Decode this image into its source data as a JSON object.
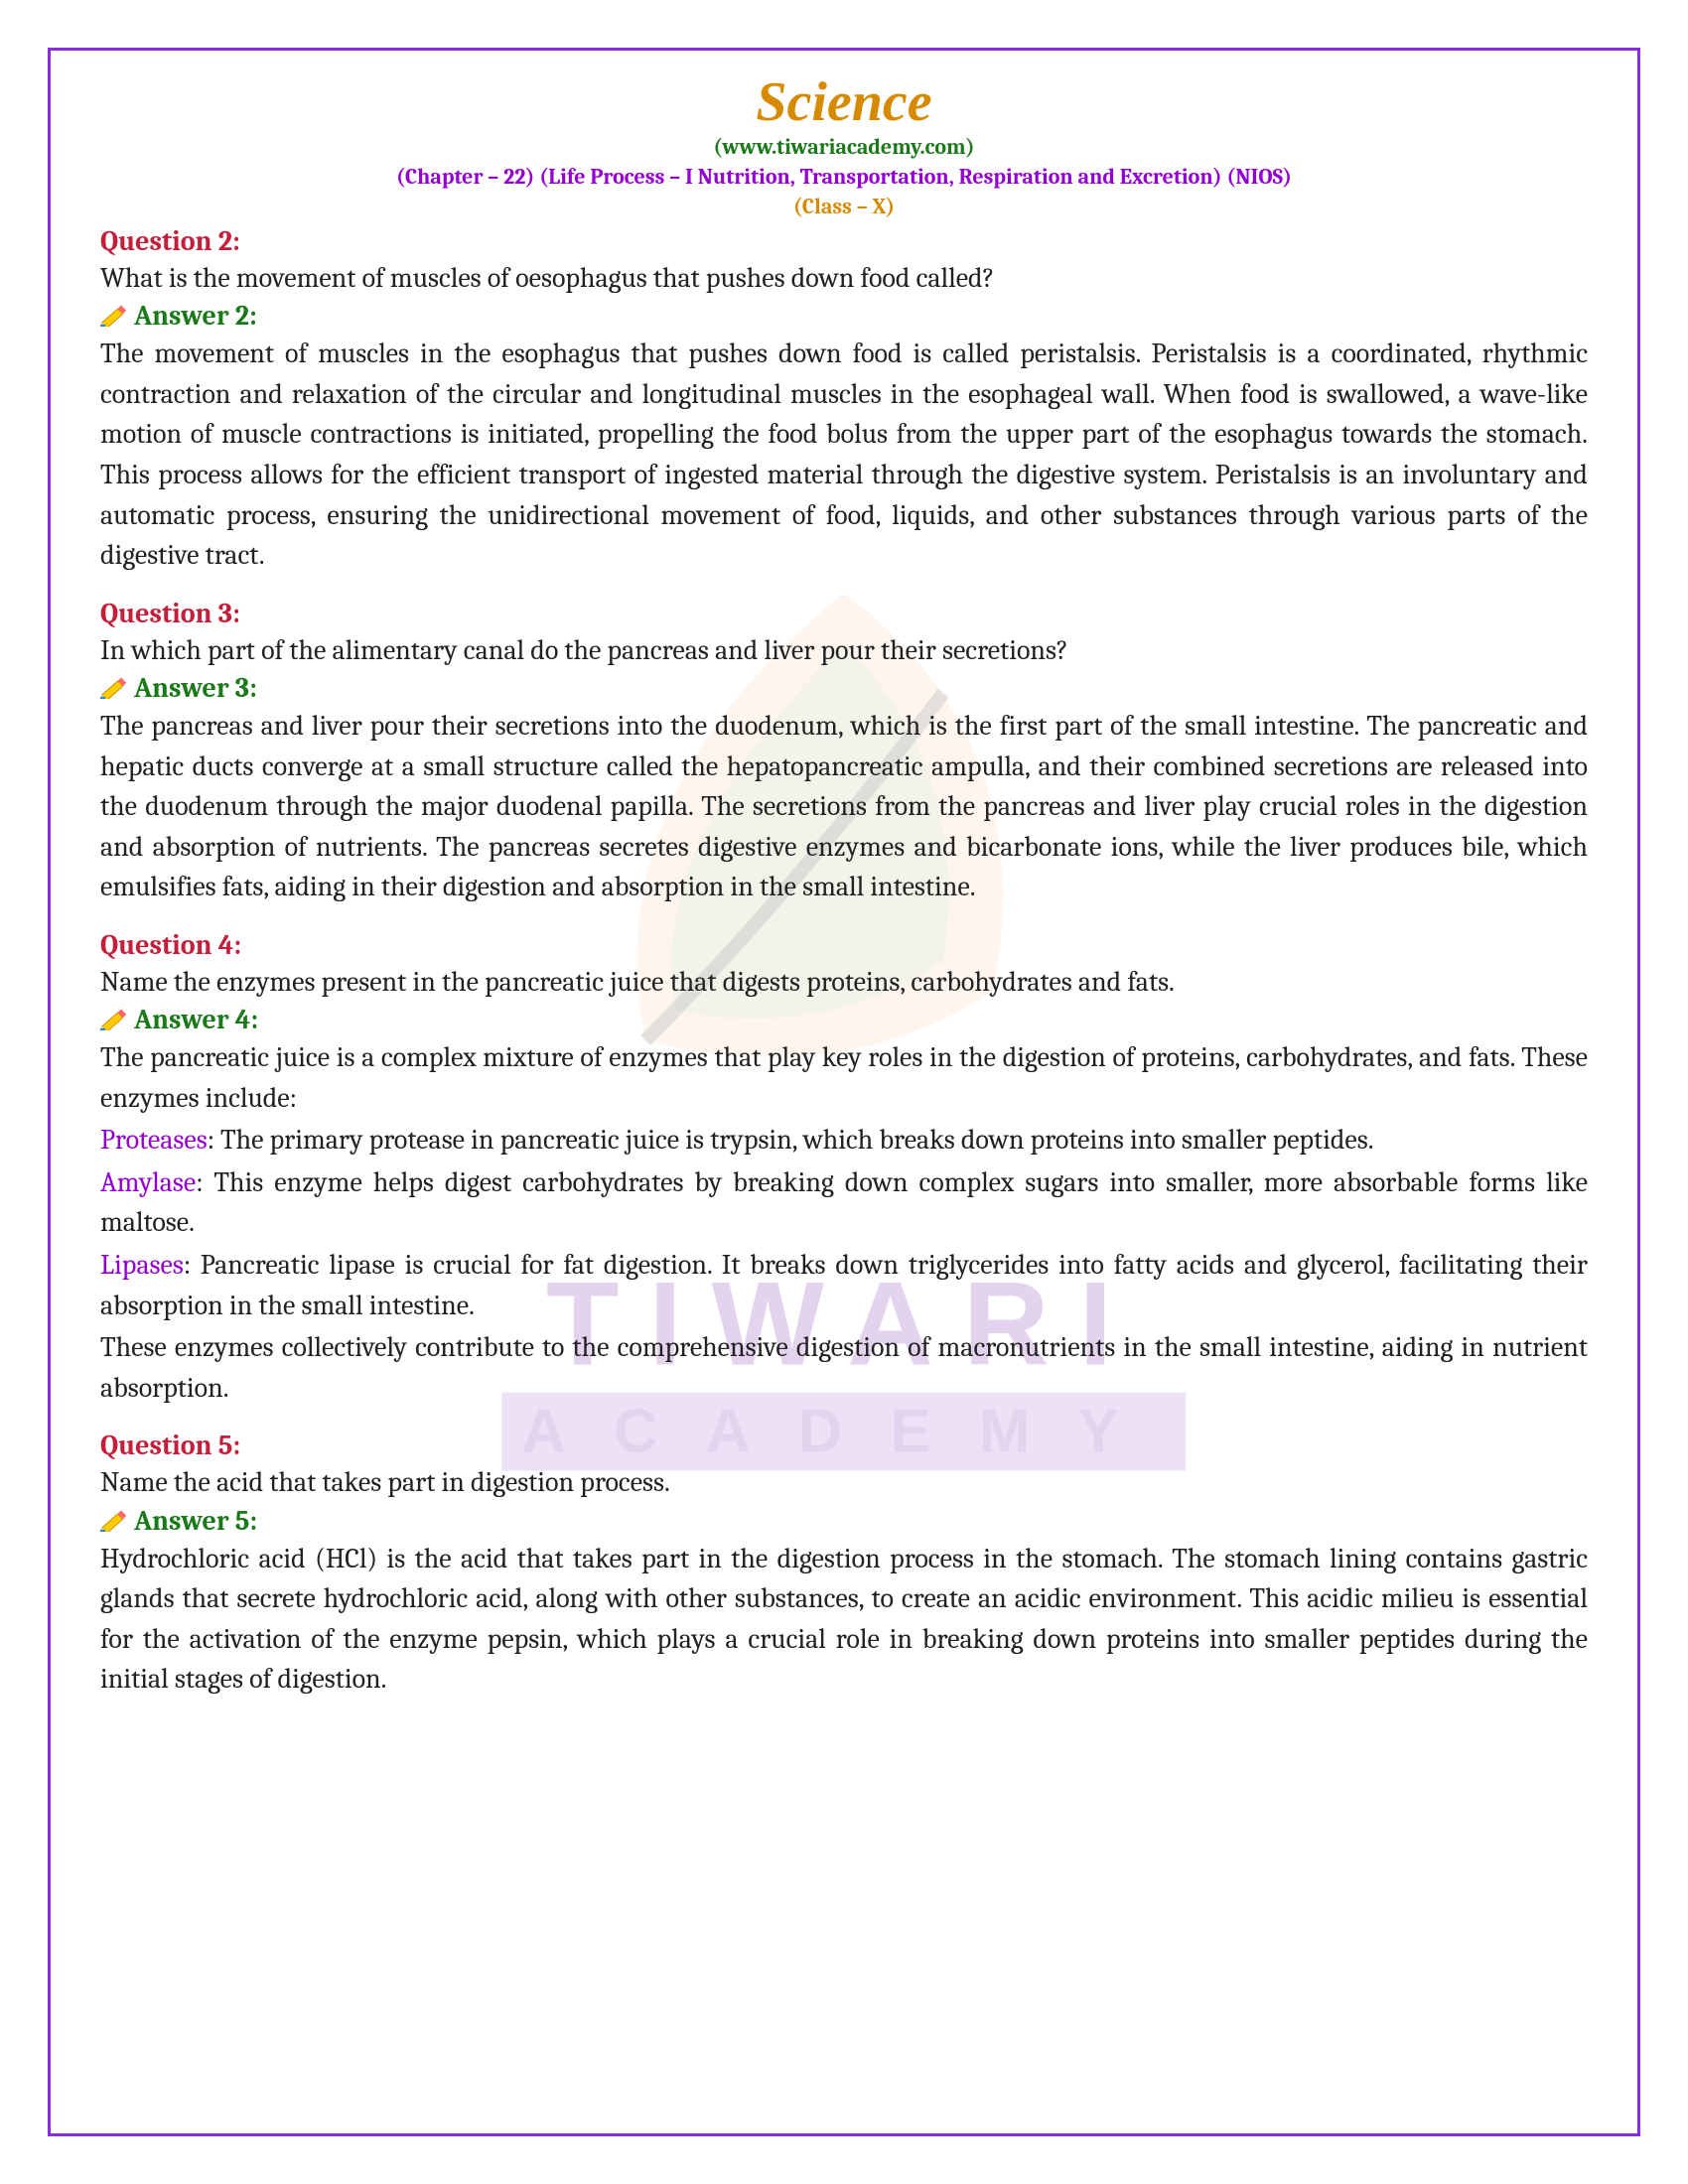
{
  "header": {
    "title": "Science",
    "url": "(www.tiwariacademy.com)",
    "chapter": "(Chapter – 22) (Life Process – I Nutrition, Transportation, Respiration and Excretion) (NIOS)",
    "class_label": "(Class – X)"
  },
  "watermark": {
    "line1": "TIWARI",
    "line2": "ACADEMY"
  },
  "colors": {
    "border": "#8a2be2",
    "title": "#d68a00",
    "url": "#1a7a1a",
    "chapter": "#9400d3",
    "question": "#c41e3a",
    "answer": "#1a7a1a",
    "body": "#222222",
    "enzyme": "#9400d3"
  },
  "qa": [
    {
      "q_label": "Question 2:",
      "q_text": "What is the movement of muscles of oesophagus that pushes down food called?",
      "a_label": "Answer 2:",
      "a_text": "The movement of muscles in the esophagus that pushes down food is called peristalsis. Peristalsis is a coordinated, rhythmic contraction and relaxation of the circular and longitudinal muscles in the esophageal wall. When food is swallowed, a wave-like motion of muscle contractions is initiated, propelling the food bolus from the upper part of the esophagus towards the stomach. This process allows for the efficient transport of ingested material through the digestive system. Peristalsis is an involuntary and automatic process, ensuring the unidirectional movement of food, liquids, and other substances through various parts of the digestive tract."
    },
    {
      "q_label": "Question 3:",
      "q_text": "In which part of the alimentary canal do the pancreas and liver pour their secretions?",
      "a_label": "Answer 3:",
      "a_text": "The pancreas and liver pour their secretions into the duodenum, which is the first part of the small intestine. The pancreatic and hepatic ducts converge at a small structure called the hepatopancreatic ampulla, and their combined secretions are released into the duodenum through the major duodenal papilla. The secretions from the pancreas and liver play crucial roles in the digestion and absorption of nutrients. The pancreas secretes digestive enzymes and bicarbonate ions, while the liver produces bile, which emulsifies fats, aiding in their digestion and absorption in the small intestine."
    },
    {
      "q_label": "Question 4:",
      "q_text": "Name the enzymes present in the pancreatic juice that digests proteins, carbohydrates and fats.",
      "a_label": "Answer 4:",
      "a_intro": "The pancreatic juice is a complex mixture of enzymes that play key roles in the digestion of proteins, carbohydrates, and fats. These enzymes include:",
      "enzymes": [
        {
          "name": "Proteases",
          "desc": ": The primary protease in pancreatic juice is trypsin, which breaks down proteins into smaller peptides."
        },
        {
          "name": "Amylase",
          "desc": ": This enzyme helps digest carbohydrates by breaking down complex sugars into smaller, more absorbable forms like maltose."
        },
        {
          "name": "Lipases",
          "desc": ": Pancreatic lipase is crucial for fat digestion. It breaks down triglycerides into fatty acids and glycerol, facilitating their absorption in the small intestine."
        }
      ],
      "a_outro": "These enzymes collectively contribute to the comprehensive digestion of macronutrients in the small intestine, aiding in nutrient absorption."
    },
    {
      "q_label": "Question 5:",
      "q_text": "Name the acid that takes part in digestion process.",
      "a_label": "Answer 5:",
      "a_text": "Hydrochloric acid (HCl) is the acid that takes part in the digestion process in the stomach. The stomach lining contains gastric glands that secrete hydrochloric acid, along with other substances, to create an acidic environment. This acidic milieu is essential for the activation of the enzyme pepsin, which plays a crucial role in breaking down proteins into smaller peptides during the initial stages of digestion."
    }
  ]
}
